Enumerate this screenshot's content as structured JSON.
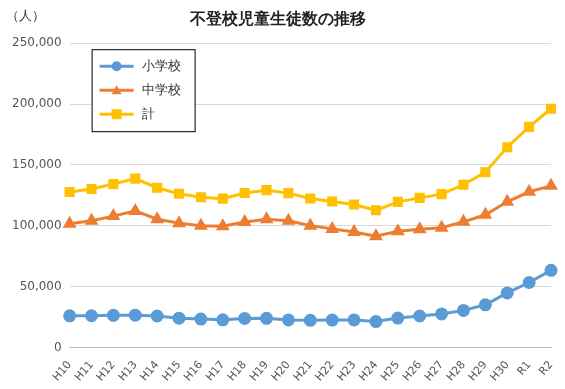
{
  "chart_data": {
    "type": "line",
    "title": "不登校児童生徒数の推移",
    "y_label": "（人）",
    "categories": [
      "H10",
      "H11",
      "H12",
      "H13",
      "H14",
      "H15",
      "H16",
      "H17",
      "H18",
      "H19",
      "H20",
      "H21",
      "H22",
      "H23",
      "H24",
      "H25",
      "H26",
      "H27",
      "H28",
      "H29",
      "H30",
      "R1",
      "R2"
    ],
    "series": [
      {
        "name": "小学校",
        "color": "#5B9BD5",
        "marker": "circle",
        "values": [
          26017,
          26047,
          26373,
          26511,
          25869,
          24077,
          23318,
          22709,
          23825,
          23927,
          22652,
          22327,
          22463,
          22622,
          21243,
          24175,
          25864,
          27583,
          30448,
          35032,
          44841,
          53350,
          63350
        ]
      },
      {
        "name": "中学校",
        "color": "#ED7D31",
        "marker": "triangle",
        "values": [
          101675,
          104180,
          107913,
          112211,
          105383,
          102149,
          100040,
          99578,
          103069,
          105328,
          104153,
          100105,
          97428,
          94836,
          91446,
          95442,
          97033,
          98408,
          103235,
          108999,
          119687,
          127922,
          132777
        ]
      },
      {
        "name": "計",
        "color": "#FFC000",
        "marker": "square",
        "values": [
          127692,
          130227,
          134286,
          138722,
          131252,
          126226,
          123358,
          122287,
          126894,
          129255,
          126805,
          122432,
          119891,
          117458,
          112689,
          119617,
          122897,
          125991,
          133683,
          144031,
          164528,
          181272,
          196127
        ]
      }
    ],
    "ylim": [
      0,
      250000
    ],
    "yticks": [
      0,
      {
        "value": 50000,
        "label": "50,000"
      },
      {
        "value": 100000,
        "label": "100,000"
      },
      {
        "value": 150000,
        "label": "150,000"
      },
      {
        "value": 200000,
        "label": "200,000"
      },
      {
        "value": 250000,
        "label": "250,000"
      }
    ],
    "grid": true,
    "legend": "top-left"
  }
}
